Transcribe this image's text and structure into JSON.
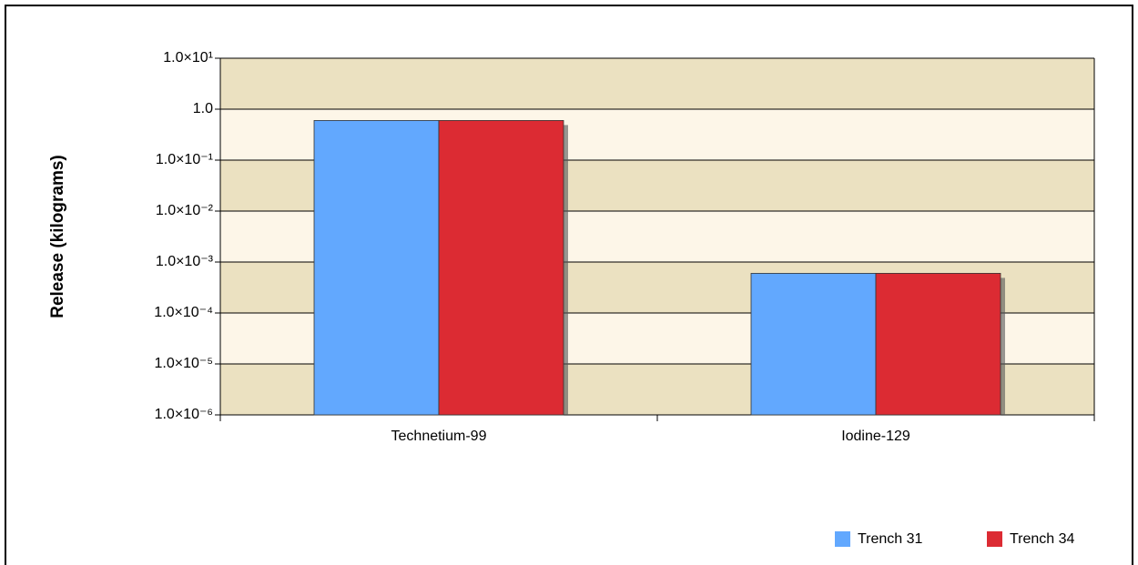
{
  "chart_data": {
    "type": "bar",
    "y_label": "Release (kilograms)",
    "categories": [
      "Technetium-99",
      "Iodine-129"
    ],
    "series": [
      {
        "name": "Trench 31",
        "color": "#62a8fe",
        "values": [
          0.6,
          0.0006
        ]
      },
      {
        "name": "Trench 34",
        "color": "#dc2b33",
        "values": [
          0.6,
          0.0006
        ]
      }
    ],
    "ylim": [
      1e-06,
      10
    ],
    "yticks": [
      {
        "value": 1e-06,
        "label": "1.0×10⁻⁶"
      },
      {
        "value": 1e-05,
        "label": "1.0×10⁻⁵"
      },
      {
        "value": 0.0001,
        "label": "1.0×10⁻⁴"
      },
      {
        "value": 0.001,
        "label": "1.0×10⁻³"
      },
      {
        "value": 0.01,
        "label": "1.0×10⁻²"
      },
      {
        "value": 0.1,
        "label": "1.0×10⁻¹"
      },
      {
        "value": 1,
        "label": "1.0"
      },
      {
        "value": 10,
        "label": "1.0×10¹"
      }
    ],
    "log_scale": true,
    "grid": true,
    "legend": "bottom-right"
  }
}
